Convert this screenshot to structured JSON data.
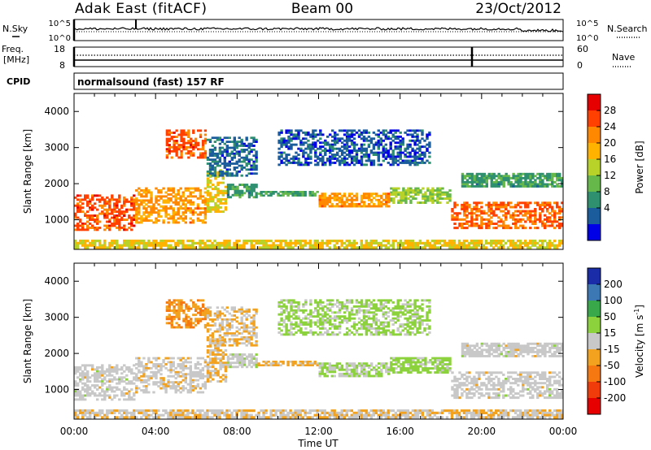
{
  "header": {
    "site": "Adak East (fitACF)",
    "beam": "Beam 00",
    "date": "23/Oct/2012"
  },
  "aux_panels": {
    "nsky_label": "N.Sky",
    "nsky_ticks": [
      "10^5",
      "10^0"
    ],
    "nsearch_label": "N.Search",
    "nsearch_ticks": [
      "10^5",
      "10^0"
    ],
    "freq_label_1": "Freq.",
    "freq_label_2": "[MHz]",
    "freq_ticks": [
      "18",
      "8"
    ],
    "nave_label": "Nave",
    "nave_ticks": [
      "60",
      "0"
    ],
    "cpid_label": "CPID",
    "cpid_value": "normalsound (fast) 157 RF"
  },
  "colorbars": {
    "power": {
      "label": "Power [dB]",
      "ticks": [
        "28",
        "24",
        "20",
        "16",
        "12",
        "8",
        "4"
      ],
      "colors": [
        "#e60000",
        "#ff4000",
        "#ff8800",
        "#ffb300",
        "#b9d22a",
        "#66b84b",
        "#2f9070",
        "#1a5c9c",
        "#0000e6"
      ]
    },
    "velocity": {
      "label_main": "Velocity [m s",
      "label_sup": "-1",
      "label_end": "]",
      "ticks": [
        "200",
        "100",
        "50",
        "15",
        "-15",
        "-50",
        "-100",
        "-200"
      ],
      "colors": [
        "#1a2ca8",
        "#3c78b4",
        "#39a84b",
        "#8cd23c",
        "#c8c8c8",
        "#f2a21e",
        "#f57810",
        "#f03c0a",
        "#e60000"
      ]
    }
  },
  "x_axis": {
    "title": "Time UT",
    "ticks": [
      "00:00",
      "04:00",
      "08:00",
      "12:00",
      "16:00",
      "20:00",
      "00:00"
    ]
  },
  "chart_data": [
    {
      "type": "heatmap",
      "name": "power-panel",
      "title": "",
      "xlabel": "",
      "ylabel": "Slant Range [km]",
      "x_range_hours": [
        0,
        24
      ],
      "ylim": [
        180,
        4500
      ],
      "yticks": [
        1000,
        2000,
        3000,
        4000
      ],
      "colorbar_label": "Power [dB]",
      "colorbar_range": [
        0,
        32
      ],
      "bands": [
        {
          "t_start": 0.0,
          "t_end": 3.0,
          "r_low": 700,
          "r_high": 1700,
          "level": 26
        },
        {
          "t_start": 3.0,
          "t_end": 6.5,
          "r_low": 900,
          "r_high": 1900,
          "level": 22
        },
        {
          "t_start": 6.5,
          "t_end": 7.5,
          "r_low": 1200,
          "r_high": 2400,
          "level": 18
        },
        {
          "t_start": 7.5,
          "t_end": 9.0,
          "r_low": 1600,
          "r_high": 2000,
          "level": 10
        },
        {
          "t_start": 9.0,
          "t_end": 12.0,
          "r_low": 1650,
          "r_high": 1800,
          "level": 10
        },
        {
          "t_start": 12.0,
          "t_end": 15.5,
          "r_low": 1350,
          "r_high": 1750,
          "level": 22
        },
        {
          "t_start": 15.5,
          "t_end": 18.5,
          "r_low": 1450,
          "r_high": 1900,
          "level": 14
        },
        {
          "t_start": 18.5,
          "t_end": 24.0,
          "r_low": 750,
          "r_high": 1500,
          "level": 25
        },
        {
          "t_start": 4.5,
          "t_end": 6.5,
          "r_low": 2700,
          "r_high": 3500,
          "level": 26
        },
        {
          "t_start": 6.5,
          "t_end": 9.0,
          "r_low": 2200,
          "r_high": 3300,
          "level": 6
        },
        {
          "t_start": 10.0,
          "t_end": 17.5,
          "r_low": 2500,
          "r_high": 3500,
          "level": 5
        },
        {
          "t_start": 19.0,
          "t_end": 24.0,
          "r_low": 1900,
          "r_high": 2300,
          "level": 10
        },
        {
          "t_start": 0.0,
          "t_end": 24.0,
          "r_low": 200,
          "r_high": 450,
          "level": 18
        }
      ]
    },
    {
      "type": "heatmap",
      "name": "velocity-panel",
      "title": "",
      "xlabel": "Time UT",
      "ylabel": "Slant Range [km]",
      "x_range_hours": [
        0,
        24
      ],
      "ylim": [
        180,
        4500
      ],
      "yticks": [
        1000,
        2000,
        3000,
        4000
      ],
      "colorbar_label": "Velocity [m s^-1]",
      "colorbar_range": [
        -250,
        250
      ],
      "bands": [
        {
          "t_start": 0.0,
          "t_end": 3.0,
          "r_low": 700,
          "r_high": 1700,
          "level": 0
        },
        {
          "t_start": 3.0,
          "t_end": 6.5,
          "r_low": 900,
          "r_high": 1900,
          "level": -10
        },
        {
          "t_start": 6.5,
          "t_end": 7.5,
          "r_low": 1200,
          "r_high": 2400,
          "level": -30
        },
        {
          "t_start": 7.5,
          "t_end": 9.0,
          "r_low": 1600,
          "r_high": 2000,
          "level": 5
        },
        {
          "t_start": 9.0,
          "t_end": 12.0,
          "r_low": 1650,
          "r_high": 1800,
          "level": -40
        },
        {
          "t_start": 12.0,
          "t_end": 15.5,
          "r_low": 1350,
          "r_high": 1750,
          "level": 30
        },
        {
          "t_start": 15.5,
          "t_end": 18.5,
          "r_low": 1450,
          "r_high": 1900,
          "level": 45
        },
        {
          "t_start": 18.5,
          "t_end": 24.0,
          "r_low": 750,
          "r_high": 1500,
          "level": 0
        },
        {
          "t_start": 4.5,
          "t_end": 6.5,
          "r_low": 2700,
          "r_high": 3500,
          "level": -80
        },
        {
          "t_start": 6.5,
          "t_end": 9.0,
          "r_low": 2200,
          "r_high": 3300,
          "level": -30
        },
        {
          "t_start": 10.0,
          "t_end": 17.5,
          "r_low": 2500,
          "r_high": 3500,
          "level": 40
        },
        {
          "t_start": 19.0,
          "t_end": 24.0,
          "r_low": 1900,
          "r_high": 2300,
          "level": 0
        },
        {
          "t_start": 0.0,
          "t_end": 24.0,
          "r_low": 200,
          "r_high": 450,
          "level": -20
        }
      ]
    }
  ]
}
